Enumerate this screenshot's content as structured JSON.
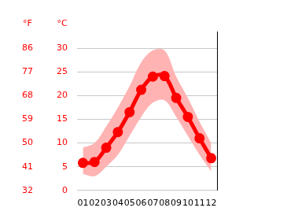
{
  "chart_data": {
    "type": "line",
    "y_label": "°C",
    "y2_label": "°F",
    "categories": [
      "01",
      "02",
      "03",
      "04",
      "05",
      "06",
      "07",
      "08",
      "09",
      "10",
      "11",
      "12"
    ],
    "series": [
      {
        "type": "area",
        "color": "#ffb3b3",
        "values": [
          9,
          10,
          13.5,
          17.5,
          22,
          27,
          29.5,
          29.5,
          24,
          19.5,
          14.5,
          10
        ]
      },
      {
        "type": "area",
        "color": "#ffb3b3",
        "values": [
          3.5,
          3,
          5,
          7.5,
          11.5,
          15.5,
          18.5,
          19,
          15.5,
          11.5,
          7.5,
          4
        ]
      },
      {
        "type": "line",
        "color": "#ff0000",
        "marker": "circle",
        "values": [
          5.8,
          6,
          9,
          12.3,
          16.5,
          21.2,
          24,
          24.1,
          19.5,
          15.5,
          11,
          6.8
        ]
      }
    ],
    "ylim": [
      0,
      33.5
    ],
    "yticks": [
      0,
      5,
      10,
      15,
      20,
      25,
      30
    ],
    "y2lim": [
      32,
      92.3
    ],
    "y2ticks": [
      32,
      41,
      50,
      59,
      68,
      77,
      86
    ],
    "grid": true
  }
}
